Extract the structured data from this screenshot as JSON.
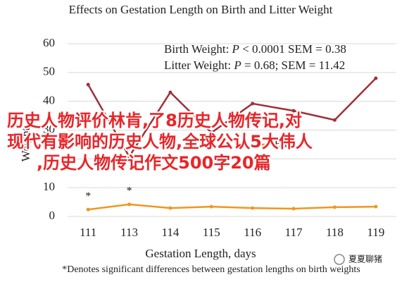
{
  "chart_data": {
    "type": "line",
    "title": "Effects on Gestation Length on Birth and Litter Weight",
    "stats": [
      [
        "Birth Weight: ",
        "P",
        " < 0.0001 SEM = 0.38"
      ],
      [
        "Litter Weight: ",
        "P",
        " = 0.68; SEM = 11.42"
      ]
    ],
    "categories": [
      "111",
      "113",
      "114",
      "115",
      "116",
      "117",
      "118",
      "119"
    ],
    "series": [
      {
        "name": "Birth",
        "color": "#f0961e",
        "values": [
          2.4,
          4.2,
          2.9,
          3.4,
          2.9,
          2.7,
          3.2,
          3.4
        ]
      },
      {
        "color": "#9e3039",
        "values": [
          45.8,
          20.8,
          43.1,
          29.1,
          39.2,
          36.7,
          33.5,
          48
        ]
      }
    ],
    "annotations": [
      "*",
      "*"
    ],
    "ylim": [
      0,
      60
    ],
    "yticks": [
      0,
      10,
      20,
      30,
      40,
      50,
      60
    ],
    "grid": true,
    "xlabel": "Gestation Length, days",
    "ylabel": "Weight",
    "footnote": "*Denotes significant differences between gestation lengths on birth weights"
  },
  "overlay": {
    "lines": [
      "历史人物评价林肯,了8历史人物传记,对",
      "现代有影响的历史人物,全球公认5大伟人",
      ",历史人物传记作文500字20篇"
    ]
  },
  "watermark": "夏夏聊猪"
}
